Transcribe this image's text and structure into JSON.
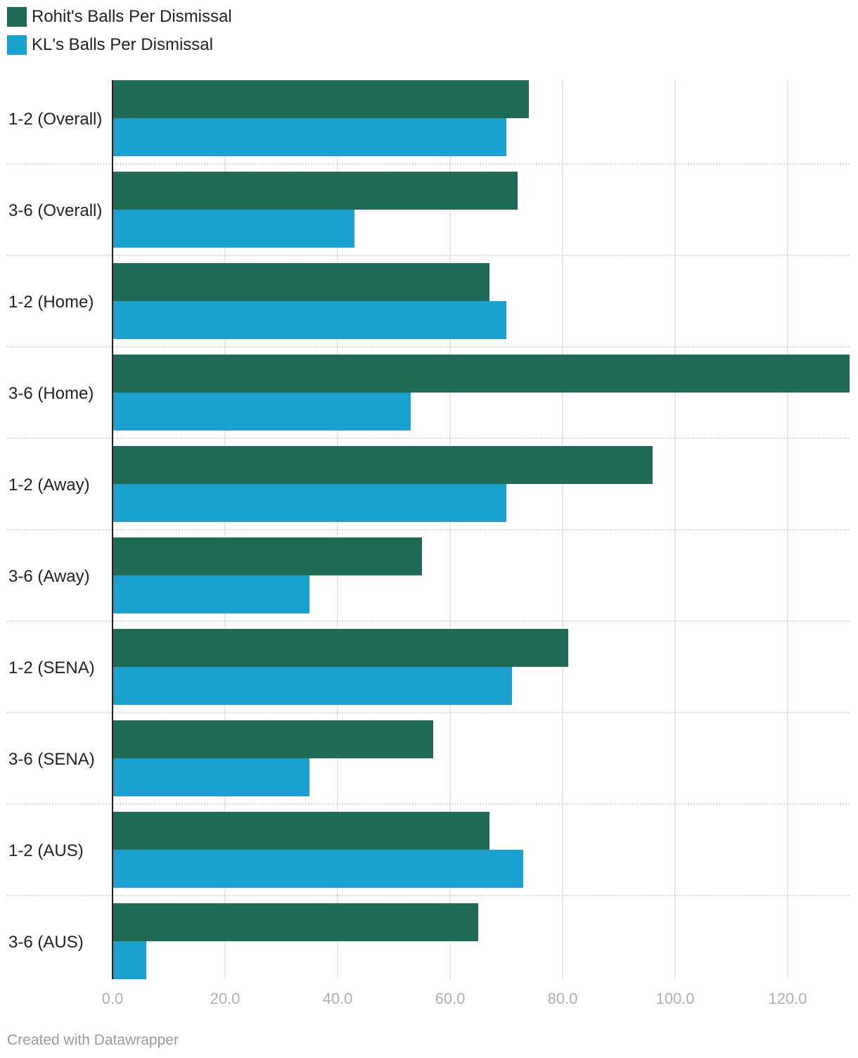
{
  "colors": {
    "rohit": "#1f6b55",
    "kl": "#1aa1cf",
    "grid": "#e0e0e0",
    "separator": "#cccccc",
    "axis": "#222222"
  },
  "legend": [
    {
      "label": "Rohit's Balls Per Dismissal",
      "color": "#1f6b55"
    },
    {
      "label": "KL's Balls Per Dismissal",
      "color": "#1aa1cf"
    }
  ],
  "chart_data": {
    "type": "bar",
    "orientation": "horizontal",
    "categories": [
      "1-2 (Overall)",
      "3-6 (Overall)",
      "1-2 (Home)",
      "3-6 (Home)",
      "1-2 (Away)",
      "3-6 (Away)",
      "1-2 (SENA)",
      "3-6 (SENA)",
      "1-2 (AUS)",
      "3-6 (AUS)"
    ],
    "series": [
      {
        "name": "Rohit's Balls Per Dismissal",
        "values": [
          74,
          72,
          67,
          131,
          96,
          55,
          81,
          57,
          67,
          65
        ]
      },
      {
        "name": "KL's Balls Per Dismissal",
        "values": [
          70,
          43,
          70,
          53,
          70,
          35,
          71,
          35,
          73,
          6
        ]
      }
    ],
    "xlim": [
      0,
      131
    ],
    "xticks": [
      0,
      20,
      40,
      60,
      80,
      100,
      120
    ],
    "xtick_labels": [
      "0.0",
      "20.0",
      "40.0",
      "60.0",
      "80.0",
      "100.0",
      "120.0"
    ],
    "grid": true,
    "legend_position": "top-left",
    "title": "",
    "xlabel": "",
    "ylabel": ""
  },
  "footer": {
    "credit": "Created with Datawrapper"
  }
}
